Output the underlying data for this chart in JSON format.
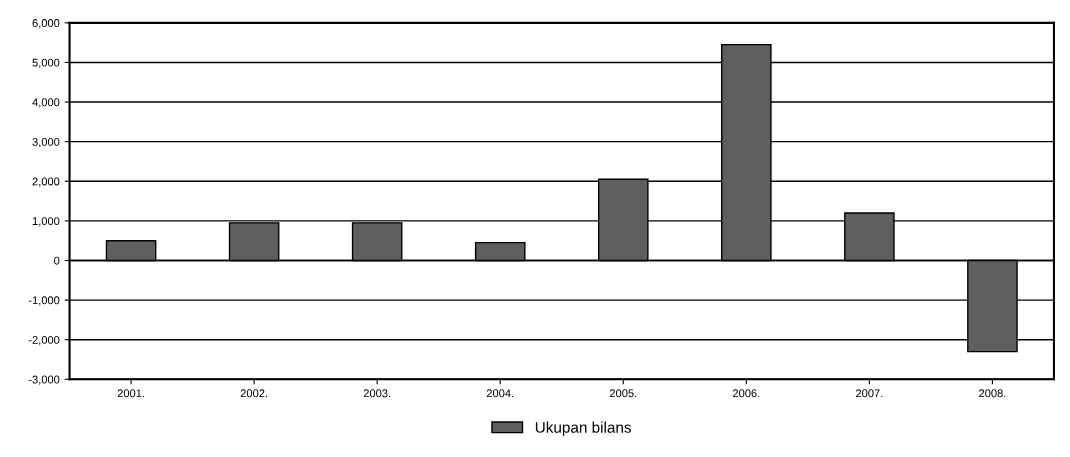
{
  "chart_data": {
    "type": "bar",
    "categories": [
      "2001.",
      "2002.",
      "2003.",
      "2004.",
      "2005.",
      "2006.",
      "2007.",
      "2008."
    ],
    "series": [
      {
        "name": "Ukupan bilans",
        "color": "#5f5f5f",
        "values": [
          500,
          950,
          950,
          450,
          2050,
          5450,
          1200,
          -2300
        ]
      }
    ],
    "ylim": [
      -3000,
      6000
    ],
    "yticks": [
      {
        "value": -3000,
        "label": "-3,000"
      },
      {
        "value": -2000,
        "label": "-2,000"
      },
      {
        "value": -1000,
        "label": "-1,000"
      },
      0,
      {
        "value": 1000,
        "label": "1,000"
      },
      {
        "value": 2000,
        "label": "2,000"
      },
      {
        "value": 3000,
        "label": "3,000"
      },
      {
        "value": 4000,
        "label": "4,000"
      },
      {
        "value": 5000,
        "label": "5,000"
      },
      {
        "value": 6000,
        "label": "6,000"
      }
    ],
    "grid": "y",
    "legend": "bottom"
  }
}
